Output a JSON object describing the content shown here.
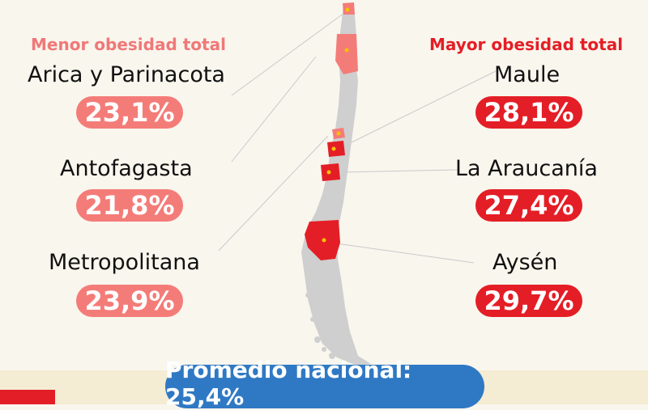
{
  "left": {
    "title": "Menor obesidad total",
    "items": [
      {
        "region": "Arica y Parinacota",
        "value": "23,1%"
      },
      {
        "region": "Antofagasta",
        "value": "21,8%"
      },
      {
        "region": "Metropolitana",
        "value": "23,9%"
      }
    ]
  },
  "right": {
    "title": "Mayor obesidad total",
    "items": [
      {
        "region": "Maule",
        "value": "28,1%"
      },
      {
        "region": "La Araucanía",
        "value": "27,4%"
      },
      {
        "region": "Aysén",
        "value": "29,7%"
      }
    ]
  },
  "national": "Promedio nacional: 25,4%",
  "colors": {
    "low": "#f47c78",
    "high": "#e41e26",
    "map_base": "#cfcfcf",
    "national_bg": "#2f79c4"
  }
}
